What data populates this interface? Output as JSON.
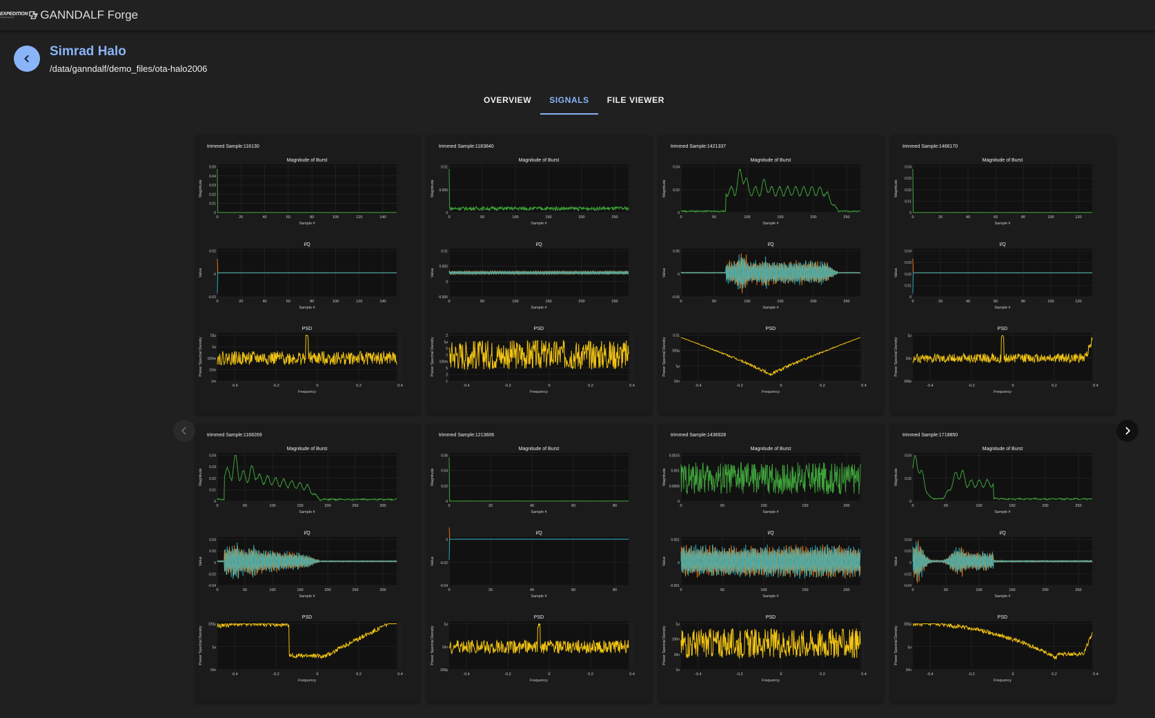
{
  "app": {
    "logo_text": "EXPEDITION",
    "logo_sub": "TECHNOLOGY",
    "title": "GANNDALF Forge"
  },
  "header": {
    "title": "Simrad Halo",
    "path": "/data/ganndalf/demo_files/ota-halo2006"
  },
  "tabs": [
    {
      "label": "OVERVIEW"
    },
    {
      "label": "SIGNALS",
      "active": true
    },
    {
      "label": "FILE VIEWER"
    }
  ],
  "colors": {
    "accent": "#8ab4f8",
    "magnitude": "#3fa33a",
    "i": "#ff7f0e",
    "q": "#2ab7c9",
    "psd": "#f2c413"
  },
  "icons": {
    "back": "chevron-left-icon",
    "prev": "chevron-left-icon",
    "next": "chevron-right-icon"
  },
  "plot_titles": {
    "magnitude": "Magnitude of Burst",
    "iq": "I/Q",
    "psd": "PSD"
  },
  "axis_labels": {
    "sample": "Sample #",
    "frequency": "Frequency",
    "magnitude": "Magnitude",
    "value": "Value",
    "psd": "Power Spectral Density"
  },
  "cards": [
    {
      "title": "trimmed Sample:116130",
      "shape": "zero",
      "n": 150,
      "x_ticks": [
        "0",
        "20",
        "40",
        "60",
        "80",
        "100",
        "120",
        "140"
      ],
      "x_max": 150,
      "mag_ticks": [
        "0",
        "0.01",
        "0.02",
        "0.03",
        "0.04",
        "0.05"
      ],
      "mag_max": 0.05,
      "iq_ticks": [
        "-0.02",
        "0",
        "0.02"
      ],
      "iq_range": [
        -0.03,
        0.03
      ],
      "psd_ticks": [
        "1m",
        "10m",
        "100m",
        "1µ",
        "10µ"
      ],
      "psd_shape": "noise-spike"
    },
    {
      "title": "trimmed Sample:1183840",
      "shape": "noise",
      "n": 260,
      "x_ticks": [
        "0",
        "50",
        "100",
        "150",
        "200",
        "250"
      ],
      "x_max": 260,
      "mag_ticks": [
        "0",
        "0.005",
        "0.01"
      ],
      "mag_max": 0.012,
      "iq_ticks": [
        "-0.005",
        "0",
        "0.005",
        "0.01"
      ],
      "iq_range": [
        -0.009,
        0.012
      ],
      "psd_ticks": [
        "1",
        "2",
        "5",
        "100m",
        "2",
        "5",
        "1µ",
        "2"
      ],
      "psd_shape": "noise"
    },
    {
      "title": "trimmed Sample:1421337",
      "shape": "burst-mid",
      "n": 290,
      "x_ticks": [
        "0",
        "50",
        "100",
        "150",
        "200",
        "250"
      ],
      "x_max": 290,
      "mag_ticks": [
        "0",
        "0.02",
        "0.04"
      ],
      "mag_max": 0.05,
      "iq_ticks": [
        "-0.05",
        "0",
        "0.05"
      ],
      "iq_range": [
        -0.055,
        0.055
      ],
      "psd_ticks": [
        "10n",
        "1µ",
        "100µ",
        "0.01"
      ],
      "psd_shape": "bowl"
    },
    {
      "title": "trimmed Sample:1466170",
      "shape": "zero",
      "n": 135,
      "x_ticks": [
        "0",
        "20",
        "40",
        "60",
        "80",
        "100",
        "120"
      ],
      "x_max": 135,
      "mag_ticks": [
        "0",
        "0.01",
        "0.02",
        "0.03",
        "0.04"
      ],
      "mag_max": 0.045,
      "iq_ticks": [
        "0",
        "0.01",
        "0.02",
        "0.03",
        "0.04"
      ],
      "iq_range": [
        -0.003,
        0.045
      ],
      "psd_ticks": [
        "100p",
        "10n",
        "1µ"
      ],
      "psd_shape": "noise-spike-end"
    },
    {
      "title": "trimmed Sample:1168269",
      "shape": "burst-early",
      "n": 315,
      "x_ticks": [
        "0",
        "50",
        "100",
        "150",
        "200",
        "250",
        "300"
      ],
      "x_max": 315,
      "mag_ticks": [
        "0",
        "0.01",
        "0.02",
        "0.03",
        "0.04"
      ],
      "mag_max": 0.047,
      "iq_ticks": [
        "-0.04",
        "-0.02",
        "0",
        "0.02",
        "0.04"
      ],
      "iq_range": [
        -0.048,
        0.048
      ],
      "psd_ticks": [
        "10n",
        "1µ",
        "100µ"
      ],
      "psd_shape": "bowl-skew"
    },
    {
      "title": "trimmed Sample:1213606",
      "shape": "zero-iq-step",
      "n": 90,
      "x_ticks": [
        "0",
        "20",
        "40",
        "60",
        "80"
      ],
      "x_max": 90,
      "mag_ticks": [
        "0",
        "0.02",
        "0.04",
        "0.06"
      ],
      "mag_max": 0.065,
      "iq_ticks": [
        "-0.04",
        "-0.02",
        "0"
      ],
      "iq_range": [
        -0.05,
        0.002
      ],
      "psd_ticks": [
        "100p",
        "10n",
        "1µ"
      ],
      "psd_shape": "noise-spike"
    },
    {
      "title": "trimmed Sample:1436928",
      "shape": "noise-big",
      "n": 230,
      "x_ticks": [
        "0",
        "50",
        "100",
        "150",
        "200"
      ],
      "x_max": 230,
      "mag_ticks": [
        "0",
        "0.0005",
        "0.001",
        "0.0015"
      ],
      "mag_max": 0.0018,
      "iq_ticks": [
        "-0.001",
        "0",
        "0.001"
      ],
      "iq_range": [
        -0.0016,
        0.0016
      ],
      "psd_ticks": [
        "1n",
        "10n",
        "100n",
        "1µ"
      ],
      "psd_shape": "noise"
    },
    {
      "title": "trimmed Sample:1718850",
      "shape": "burst-decay",
      "n": 295,
      "x_ticks": [
        "0",
        "50",
        "100",
        "150",
        "200",
        "250"
      ],
      "x_max": 295,
      "mag_ticks": [
        "0",
        "0.02",
        "0.04"
      ],
      "mag_max": 0.046,
      "iq_ticks": [
        "-0.04",
        "-0.02",
        "0",
        "0.02",
        "0.04"
      ],
      "iq_range": [
        -0.048,
        0.048
      ],
      "psd_ticks": [
        "10n",
        "1µ",
        "100µ"
      ],
      "psd_shape": "bowl-end"
    }
  ]
}
